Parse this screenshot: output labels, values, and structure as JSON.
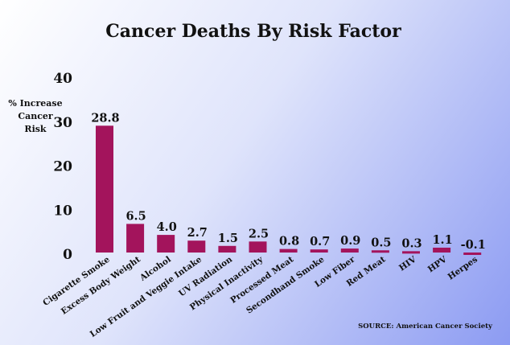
{
  "chart_data": {
    "type": "bar",
    "title": "Cancer Deaths By Risk Factor",
    "ylabel": "% Increase Cancer Risk",
    "ylabel_lines": [
      "% Increase",
      "Cancer",
      "Risk"
    ],
    "xlabel": "",
    "ylim": [
      0,
      40
    ],
    "yticks": [
      0,
      10,
      20,
      30,
      40
    ],
    "grid": false,
    "legend": "none",
    "bar_color": "#a3145c",
    "categories": [
      "Cigarette Smoke",
      "Excess Body Weight",
      "Alcohol",
      "Low Fruit and Veggie Intake",
      "UV Radiation",
      "Physical Inactivity",
      "Processed Meat",
      "Secondhand Smoke",
      "Low Fiber",
      "Red Meat",
      "HIV",
      "HPV",
      "Herpes"
    ],
    "values": [
      28.8,
      6.5,
      4.0,
      2.7,
      1.5,
      2.5,
      0.8,
      0.7,
      0.9,
      0.5,
      0.3,
      1.1,
      -0.1
    ],
    "value_labels": [
      "28.8",
      "6.5",
      "4.0",
      "2.7",
      "1.5",
      "2.5",
      "0.8",
      "0.7",
      "0.9",
      "0.5",
      "0.3",
      "1.1",
      "-0.1"
    ],
    "source": "SOURCE: American Cancer Society"
  }
}
